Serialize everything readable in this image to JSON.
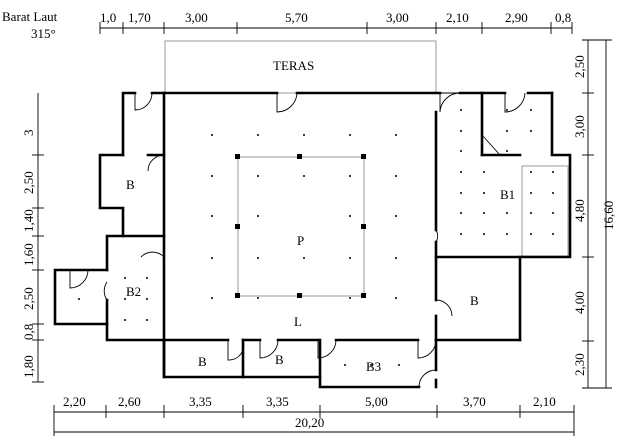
{
  "orientation": {
    "direction": "Barat Laut",
    "degrees": "315°"
  },
  "dimensions": {
    "top": [
      "1,0",
      "1,70",
      "3,00",
      "5,70",
      "3,00",
      "2,10",
      "2,90",
      "0,8"
    ],
    "bottom": [
      "2,20",
      "2,60",
      "3,35",
      "3,35",
      "5,00",
      "3,70",
      "2,10"
    ],
    "bottom_total": "20,20",
    "left": [
      "3",
      "2,50",
      "1,40",
      "1,60",
      "2,50",
      "0,8",
      "1,80"
    ],
    "right": [
      "2,50",
      "3,00",
      "4,80",
      "4,00",
      "2,30"
    ],
    "right_total": "16,60"
  },
  "rooms": {
    "teras": "TERAS",
    "pendopo": "P",
    "l": "L",
    "b_left": "B",
    "b2": "B2",
    "b1": "B1",
    "b_right": "B",
    "b_bottom_1": "B",
    "b_bottom_2": "B",
    "b3": "B3"
  }
}
